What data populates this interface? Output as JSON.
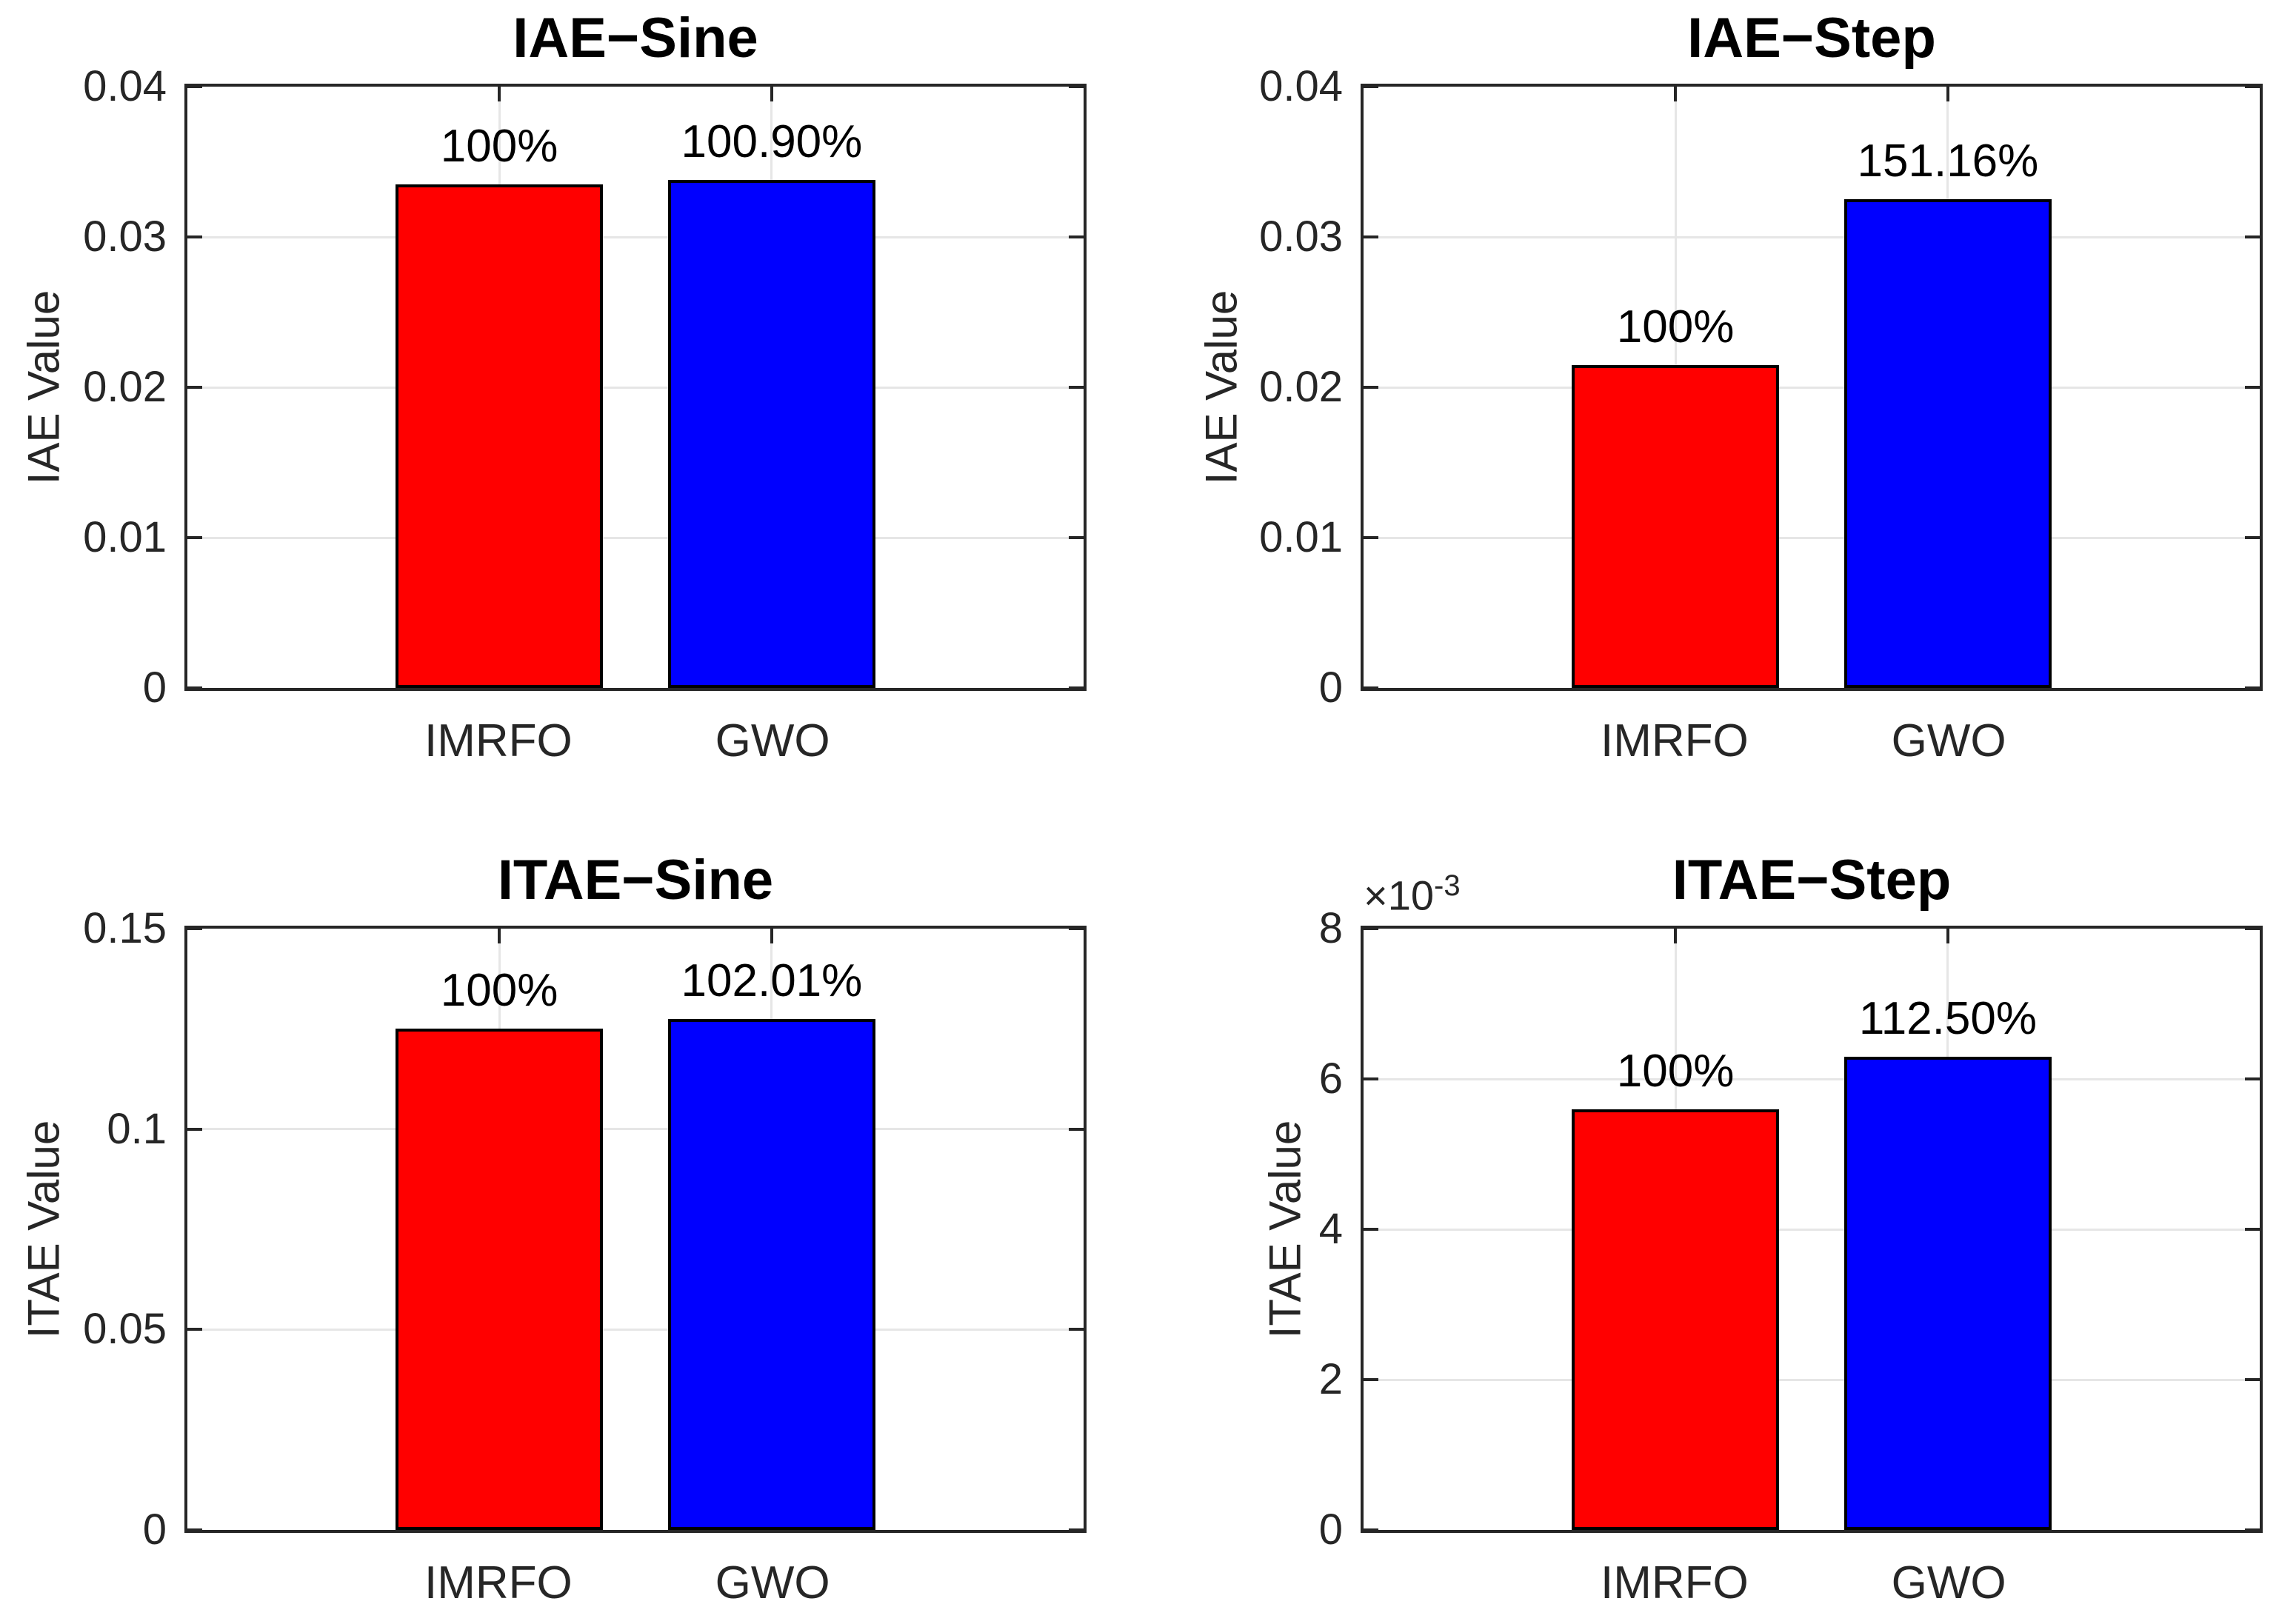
{
  "colors": {
    "bar_imrfo": "#ff0000",
    "bar_gwo": "#0000ff",
    "bar_edge": "#000000",
    "axis": "#262626",
    "grid": "#e6e6e6",
    "title_text": "#000000",
    "background": "#ffffff"
  },
  "chart_data": [
    {
      "type": "bar",
      "title": "IAE−Sine",
      "ylabel": "IAE Value",
      "categories": [
        "IMRFO",
        "GWO"
      ],
      "values": [
        0.0335,
        0.0338
      ],
      "bar_labels": [
        "100%",
        "100.90%"
      ],
      "series_colors": [
        "#ff0000",
        "#0000ff"
      ],
      "ylim": [
        0,
        0.04
      ],
      "yticks": [
        0,
        0.01,
        0.02,
        0.03,
        0.04
      ],
      "ytick_labels": [
        "0",
        "0.01",
        "0.02",
        "0.03",
        "0.04"
      ],
      "multiplier": null,
      "grid": true,
      "legend": null
    },
    {
      "type": "bar",
      "title": "IAE−Step",
      "ylabel": "IAE Value",
      "categories": [
        "IMRFO",
        "GWO"
      ],
      "values": [
        0.0215,
        0.0325
      ],
      "bar_labels": [
        "100%",
        "151.16%"
      ],
      "series_colors": [
        "#ff0000",
        "#0000ff"
      ],
      "ylim": [
        0,
        0.04
      ],
      "yticks": [
        0,
        0.01,
        0.02,
        0.03,
        0.04
      ],
      "ytick_labels": [
        "0",
        "0.01",
        "0.02",
        "0.03",
        "0.04"
      ],
      "multiplier": null,
      "grid": true,
      "legend": null
    },
    {
      "type": "bar",
      "title": "ITAE−Sine",
      "ylabel": "ITAE Value",
      "categories": [
        "IMRFO",
        "GWO"
      ],
      "values": [
        0.125,
        0.1275
      ],
      "bar_labels": [
        "100%",
        "102.01%"
      ],
      "series_colors": [
        "#ff0000",
        "#0000ff"
      ],
      "ylim": [
        0,
        0.15
      ],
      "yticks": [
        0,
        0.05,
        0.1,
        0.15
      ],
      "ytick_labels": [
        "0",
        "0.05",
        "0.1",
        "0.15"
      ],
      "multiplier": null,
      "grid": true,
      "legend": null
    },
    {
      "type": "bar",
      "title": "ITAE−Step",
      "ylabel": "ITAE Value",
      "categories": [
        "IMRFO",
        "GWO"
      ],
      "values": [
        0.0056,
        0.0063
      ],
      "bar_labels": [
        "100%",
        "112.50%"
      ],
      "series_colors": [
        "#ff0000",
        "#0000ff"
      ],
      "ylim": [
        0,
        0.008
      ],
      "yticks": [
        0,
        0.002,
        0.004,
        0.006,
        0.008
      ],
      "ytick_labels": [
        "0",
        "2",
        "4",
        "6",
        "8"
      ],
      "multiplier": {
        "base": "×10",
        "exp": "-3"
      },
      "grid": true,
      "legend": null
    }
  ]
}
